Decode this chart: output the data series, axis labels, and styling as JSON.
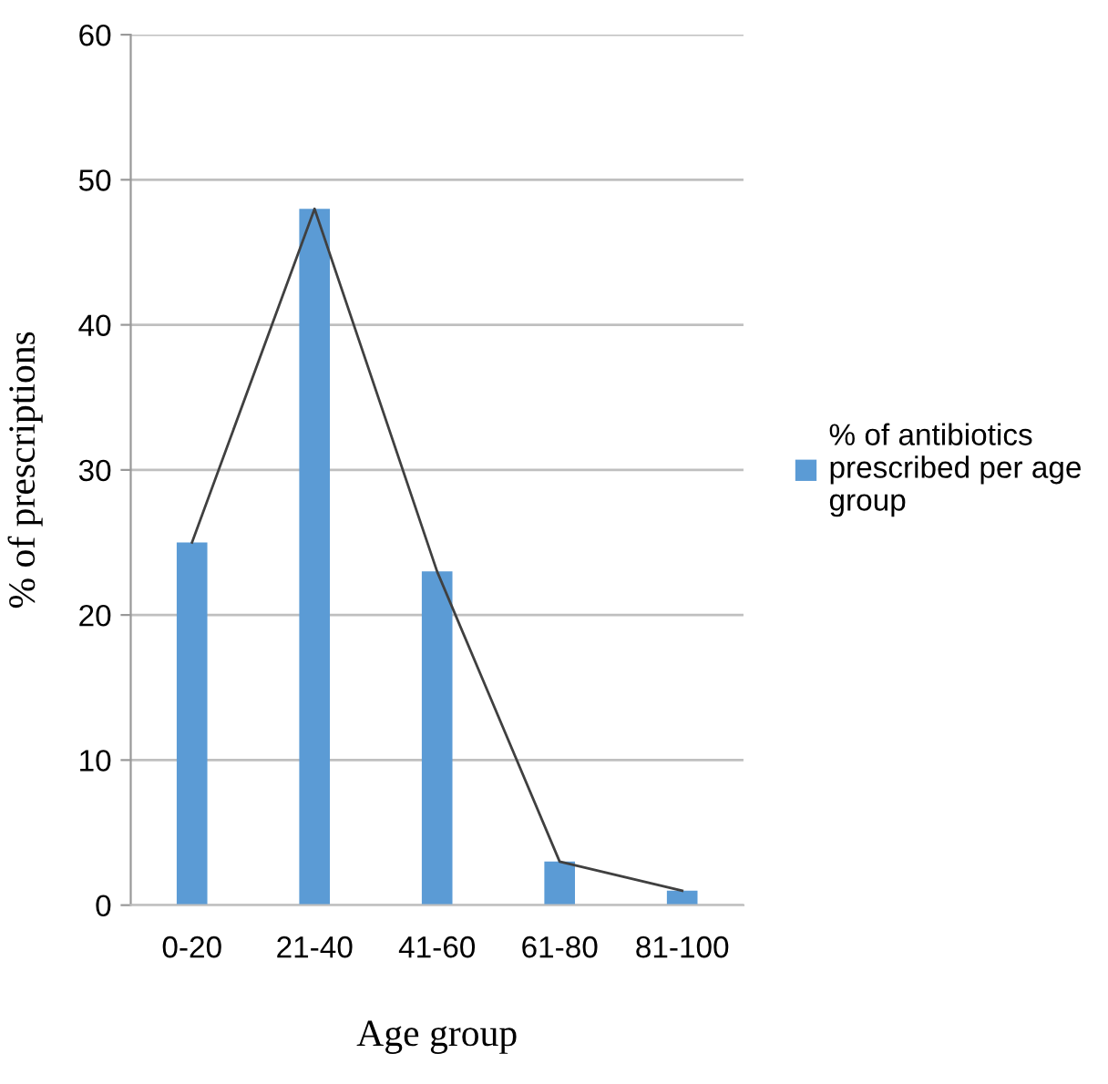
{
  "chart_data": {
    "type": "bar",
    "xlabel": "Age group",
    "ylabel": "% of prescriptions",
    "categories": [
      "0-20",
      "21-40",
      "41-60",
      "61-80",
      "81-100"
    ],
    "series": [
      {
        "name": "% of antibiotics prescribed per age group",
        "color": "#5b9bd5",
        "values": [
          25,
          48,
          23,
          3,
          1
        ]
      },
      {
        "type": "line",
        "color": "#404040",
        "values": [
          25,
          48,
          23,
          3,
          1
        ]
      }
    ],
    "ylim": [
      0,
      60
    ],
    "yticks": [
      0,
      10,
      20,
      30,
      40,
      50,
      60
    ],
    "grid": "y",
    "legend": "right"
  }
}
